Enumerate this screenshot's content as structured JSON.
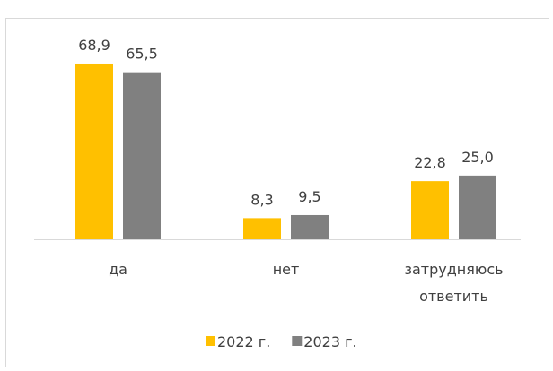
{
  "chart_data": {
    "type": "bar",
    "categories": [
      "да",
      "нет",
      "затрудняюсь ответить"
    ],
    "series": [
      {
        "name": "2022 г.",
        "color": "#ffc000",
        "values": [
          68.9,
          8.3,
          22.8
        ],
        "value_labels": [
          "68,9",
          "8,3",
          "22,8"
        ]
      },
      {
        "name": "2023 г.",
        "color": "#808080",
        "values": [
          65.5,
          9.5,
          25.0
        ],
        "value_labels": [
          "65,5",
          "9,5",
          "25,0"
        ]
      }
    ],
    "legend": "bottom"
  }
}
